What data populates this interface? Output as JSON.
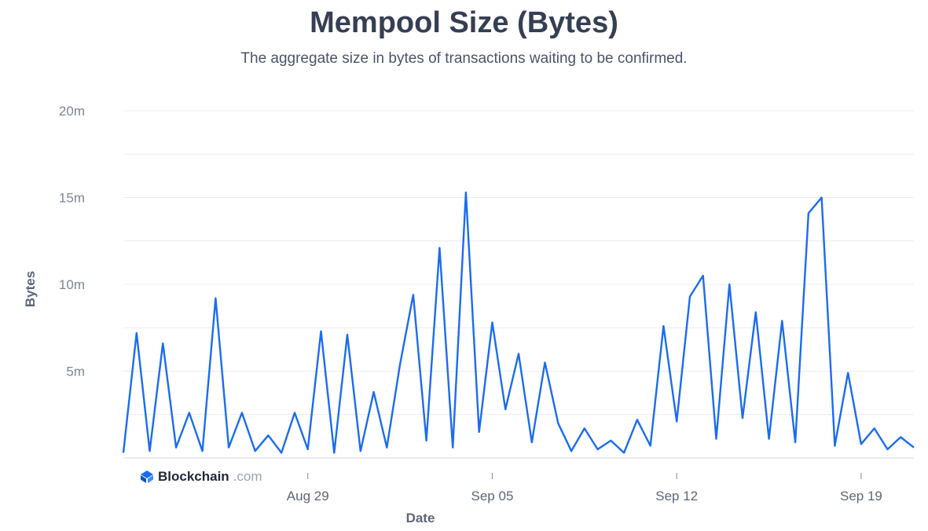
{
  "brand": {
    "name": "Blockchain",
    "suffix": ".com",
    "color": "#1a6cf0"
  },
  "chart_data": {
    "type": "line",
    "title": "Mempool Size (Bytes)",
    "subtitle": "The aggregate size in bytes of transactions waiting to be confirmed.",
    "xlabel": "Date",
    "ylabel": "Bytes",
    "x_range": [
      "2023-08-22",
      "2023-09-21"
    ],
    "xticks": [
      {
        "date": "2023-08-29",
        "label": "Aug 29"
      },
      {
        "date": "2023-09-05",
        "label": "Sep 05"
      },
      {
        "date": "2023-09-12",
        "label": "Sep 12"
      },
      {
        "date": "2023-09-19",
        "label": "Sep 19"
      }
    ],
    "ylim": [
      0,
      20500000
    ],
    "yticks": [
      {
        "value": 5000000,
        "label": "5m"
      },
      {
        "value": 10000000,
        "label": "10m"
      },
      {
        "value": 15000000,
        "label": "15m"
      },
      {
        "value": 20000000,
        "label": "20m"
      }
    ],
    "grid": true,
    "line_color": "#1a6cf0",
    "series": [
      {
        "x": [
          "2023-08-22",
          "2023-08-22T12:00",
          "2023-08-23",
          "2023-08-23T12:00",
          "2023-08-24",
          "2023-08-24T12:00",
          "2023-08-25",
          "2023-08-25T12:00",
          "2023-08-26",
          "2023-08-26T12:00",
          "2023-08-27",
          "2023-08-27T12:00",
          "2023-08-28",
          "2023-08-28T12:00",
          "2023-08-29",
          "2023-08-29T12:00",
          "2023-08-30",
          "2023-08-30T12:00",
          "2023-08-31",
          "2023-08-31T12:00",
          "2023-09-01",
          "2023-09-01T12:00",
          "2023-09-02",
          "2023-09-02T12:00",
          "2023-09-03",
          "2023-09-03T12:00",
          "2023-09-04",
          "2023-09-04T12:00",
          "2023-09-05",
          "2023-09-05T12:00",
          "2023-09-06",
          "2023-09-06T12:00",
          "2023-09-07",
          "2023-09-07T12:00",
          "2023-09-08",
          "2023-09-08T12:00",
          "2023-09-09",
          "2023-09-09T12:00",
          "2023-09-10",
          "2023-09-10T12:00",
          "2023-09-11",
          "2023-09-11T12:00",
          "2023-09-12",
          "2023-09-12T12:00",
          "2023-09-13",
          "2023-09-13T12:00",
          "2023-09-14",
          "2023-09-14T12:00",
          "2023-09-15",
          "2023-09-15T12:00",
          "2023-09-16",
          "2023-09-16T12:00",
          "2023-09-17",
          "2023-09-17T12:00",
          "2023-09-18",
          "2023-09-18T12:00",
          "2023-09-19",
          "2023-09-19T12:00",
          "2023-09-20",
          "2023-09-20T12:00",
          "2023-09-21"
        ],
        "values": [
          300000,
          7200000,
          400000,
          6600000,
          600000,
          2600000,
          400000,
          9200000,
          600000,
          2600000,
          400000,
          1300000,
          300000,
          2600000,
          500000,
          7300000,
          300000,
          7100000,
          400000,
          3800000,
          600000,
          5400000,
          9400000,
          1000000,
          12100000,
          600000,
          15300000,
          1500000,
          7800000,
          2800000,
          6000000,
          900000,
          5500000,
          2000000,
          400000,
          1700000,
          500000,
          1000000,
          300000,
          2200000,
          700000,
          7600000,
          2100000,
          9300000,
          10500000,
          1100000,
          10000000,
          2300000,
          8400000,
          1100000,
          7900000,
          900000,
          14100000,
          15000000,
          700000,
          4900000,
          800000,
          1700000,
          500000,
          1200000,
          600000
        ]
      }
    ]
  }
}
